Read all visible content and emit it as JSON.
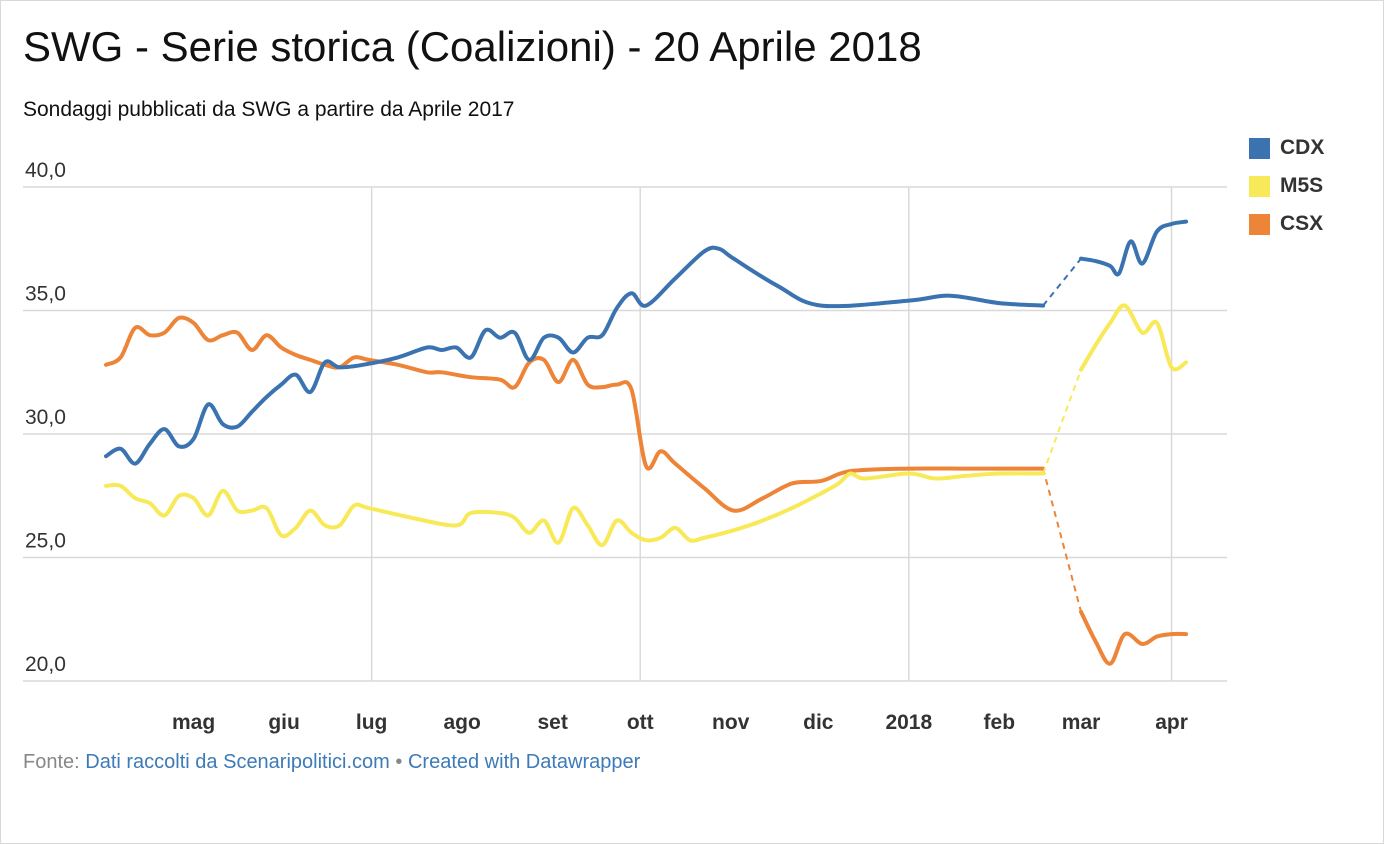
{
  "title": "SWG - Serie storica (Coalizioni) - 20 Aprile 2018",
  "subtitle": "Sondaggi pubblicati da SWG a partire da Aprile 2017",
  "footer": {
    "prefix": "Fonte:",
    "source_link": "Dati raccolti da Scenaripolitici.com",
    "separator": "•",
    "credit_link": "Created with Datawrapper"
  },
  "chart_data": {
    "type": "line",
    "title": "SWG - Serie storica (Coalizioni) - 20 Aprile 2018",
    "subtitle": "Sondaggi pubblicati da SWG a partire da Aprile 2017",
    "ylim": [
      20,
      40
    ],
    "yticks": [
      20,
      25,
      30,
      35,
      40
    ],
    "ytick_labels": [
      "20,0",
      "25,0",
      "30,0",
      "35,0",
      "40,0"
    ],
    "xlim": [
      "2017-04-01",
      "2018-04-20"
    ],
    "xticks": [
      {
        "date": "2017-05-01",
        "label": "mag",
        "bold": false
      },
      {
        "date": "2017-06-01",
        "label": "giu",
        "bold": false
      },
      {
        "date": "2017-07-01",
        "label": "lug",
        "bold": false
      },
      {
        "date": "2017-08-01",
        "label": "ago",
        "bold": false
      },
      {
        "date": "2017-09-01",
        "label": "set",
        "bold": false
      },
      {
        "date": "2017-10-01",
        "label": "ott",
        "bold": false
      },
      {
        "date": "2017-11-01",
        "label": "nov",
        "bold": false
      },
      {
        "date": "2017-12-01",
        "label": "dic",
        "bold": false
      },
      {
        "date": "2018-01-01",
        "label": "2018",
        "bold": true
      },
      {
        "date": "2018-02-01",
        "label": "feb",
        "bold": false
      },
      {
        "date": "2018-03-01",
        "label": "mar",
        "bold": false
      },
      {
        "date": "2018-04-01",
        "label": "apr",
        "bold": false
      }
    ],
    "vertical_gridlines_at": [
      "2017-07-01",
      "2017-10-01",
      "2018-01-01",
      "2018-04-01"
    ],
    "grid": true,
    "legend_position": "top-right",
    "gap": {
      "start": "2018-02-16",
      "end": "2018-03-01",
      "style": "dashed"
    },
    "series": [
      {
        "name": "CDX",
        "color": "#3a73b0",
        "points": [
          [
            "2017-04-01",
            29.1
          ],
          [
            "2017-04-06",
            29.4
          ],
          [
            "2017-04-11",
            28.8
          ],
          [
            "2017-04-16",
            29.6
          ],
          [
            "2017-04-21",
            30.2
          ],
          [
            "2017-04-26",
            29.5
          ],
          [
            "2017-05-01",
            29.8
          ],
          [
            "2017-05-06",
            31.2
          ],
          [
            "2017-05-11",
            30.4
          ],
          [
            "2017-05-16",
            30.3
          ],
          [
            "2017-05-21",
            30.9
          ],
          [
            "2017-05-26",
            31.5
          ],
          [
            "2017-05-31",
            32.0
          ],
          [
            "2017-06-05",
            32.4
          ],
          [
            "2017-06-10",
            31.7
          ],
          [
            "2017-06-15",
            32.9
          ],
          [
            "2017-06-20",
            32.7
          ],
          [
            "2017-06-28",
            32.8
          ],
          [
            "2017-07-10",
            33.1
          ],
          [
            "2017-07-20",
            33.5
          ],
          [
            "2017-07-25",
            33.4
          ],
          [
            "2017-07-30",
            33.5
          ],
          [
            "2017-08-04",
            33.1
          ],
          [
            "2017-08-09",
            34.2
          ],
          [
            "2017-08-14",
            33.9
          ],
          [
            "2017-08-19",
            34.1
          ],
          [
            "2017-08-24",
            33.0
          ],
          [
            "2017-08-29",
            33.9
          ],
          [
            "2017-09-03",
            33.9
          ],
          [
            "2017-09-08",
            33.3
          ],
          [
            "2017-09-13",
            33.9
          ],
          [
            "2017-09-18",
            34.0
          ],
          [
            "2017-09-23",
            35.1
          ],
          [
            "2017-09-28",
            35.7
          ],
          [
            "2017-10-03",
            35.2
          ],
          [
            "2017-10-13",
            36.3
          ],
          [
            "2017-10-23",
            37.4
          ],
          [
            "2017-10-28",
            37.5
          ],
          [
            "2017-11-02",
            37.1
          ],
          [
            "2017-11-17",
            36.0
          ],
          [
            "2017-12-02",
            35.2
          ],
          [
            "2018-01-01",
            35.4
          ],
          [
            "2018-01-15",
            35.6
          ],
          [
            "2018-02-01",
            35.3
          ],
          [
            "2018-02-16",
            35.2
          ],
          [
            "2018-03-01",
            37.1
          ],
          [
            "2018-03-06",
            37.0
          ],
          [
            "2018-03-11",
            36.8
          ],
          [
            "2018-03-14",
            36.5
          ],
          [
            "2018-03-18",
            37.8
          ],
          [
            "2018-03-22",
            36.9
          ],
          [
            "2018-03-27",
            38.2
          ],
          [
            "2018-04-01",
            38.5
          ],
          [
            "2018-04-06",
            38.6
          ]
        ]
      },
      {
        "name": "M5S",
        "color": "#f7e957",
        "points": [
          [
            "2017-04-01",
            27.9
          ],
          [
            "2017-04-06",
            27.9
          ],
          [
            "2017-04-11",
            27.4
          ],
          [
            "2017-04-16",
            27.2
          ],
          [
            "2017-04-21",
            26.7
          ],
          [
            "2017-04-26",
            27.5
          ],
          [
            "2017-05-01",
            27.4
          ],
          [
            "2017-05-06",
            26.7
          ],
          [
            "2017-05-11",
            27.7
          ],
          [
            "2017-05-16",
            26.9
          ],
          [
            "2017-05-21",
            26.9
          ],
          [
            "2017-05-26",
            27.0
          ],
          [
            "2017-05-31",
            25.9
          ],
          [
            "2017-06-05",
            26.2
          ],
          [
            "2017-06-10",
            26.9
          ],
          [
            "2017-06-15",
            26.3
          ],
          [
            "2017-06-20",
            26.3
          ],
          [
            "2017-06-25",
            27.1
          ],
          [
            "2017-06-30",
            27.0
          ],
          [
            "2017-07-15",
            26.6
          ],
          [
            "2017-07-30",
            26.3
          ],
          [
            "2017-08-04",
            26.8
          ],
          [
            "2017-08-14",
            26.8
          ],
          [
            "2017-08-19",
            26.6
          ],
          [
            "2017-08-24",
            26.0
          ],
          [
            "2017-08-29",
            26.5
          ],
          [
            "2017-09-03",
            25.6
          ],
          [
            "2017-09-08",
            27.0
          ],
          [
            "2017-09-13",
            26.3
          ],
          [
            "2017-09-18",
            25.5
          ],
          [
            "2017-09-23",
            26.5
          ],
          [
            "2017-09-28",
            26.0
          ],
          [
            "2017-10-03",
            25.7
          ],
          [
            "2017-10-08",
            25.8
          ],
          [
            "2017-10-13",
            26.2
          ],
          [
            "2017-10-18",
            25.7
          ],
          [
            "2017-10-23",
            25.8
          ],
          [
            "2017-11-02",
            26.1
          ],
          [
            "2017-11-12",
            26.5
          ],
          [
            "2017-11-22",
            27.0
          ],
          [
            "2017-12-02",
            27.6
          ],
          [
            "2017-12-08",
            28.0
          ],
          [
            "2017-12-12",
            28.4
          ],
          [
            "2017-12-17",
            28.2
          ],
          [
            "2018-01-01",
            28.4
          ],
          [
            "2018-01-10",
            28.2
          ],
          [
            "2018-01-20",
            28.3
          ],
          [
            "2018-02-01",
            28.4
          ],
          [
            "2018-02-16",
            28.4
          ],
          [
            "2018-03-01",
            32.6
          ],
          [
            "2018-03-06",
            33.6
          ],
          [
            "2018-03-11",
            34.5
          ],
          [
            "2018-03-16",
            35.2
          ],
          [
            "2018-03-22",
            34.1
          ],
          [
            "2018-03-27",
            34.5
          ],
          [
            "2018-04-01",
            32.7
          ],
          [
            "2018-04-06",
            32.9
          ]
        ]
      },
      {
        "name": "CSX",
        "color": "#ed8437",
        "points": [
          [
            "2017-04-01",
            32.8
          ],
          [
            "2017-04-06",
            33.1
          ],
          [
            "2017-04-11",
            34.3
          ],
          [
            "2017-04-16",
            34.0
          ],
          [
            "2017-04-21",
            34.1
          ],
          [
            "2017-04-26",
            34.7
          ],
          [
            "2017-05-01",
            34.5
          ],
          [
            "2017-05-06",
            33.8
          ],
          [
            "2017-05-11",
            34.0
          ],
          [
            "2017-05-16",
            34.1
          ],
          [
            "2017-05-21",
            33.4
          ],
          [
            "2017-05-26",
            34.0
          ],
          [
            "2017-05-31",
            33.5
          ],
          [
            "2017-06-05",
            33.2
          ],
          [
            "2017-06-10",
            33.0
          ],
          [
            "2017-06-15",
            32.8
          ],
          [
            "2017-06-20",
            32.7
          ],
          [
            "2017-06-25",
            33.1
          ],
          [
            "2017-06-30",
            33.0
          ],
          [
            "2017-07-10",
            32.8
          ],
          [
            "2017-07-20",
            32.5
          ],
          [
            "2017-07-25",
            32.5
          ],
          [
            "2017-08-04",
            32.3
          ],
          [
            "2017-08-14",
            32.2
          ],
          [
            "2017-08-19",
            31.9
          ],
          [
            "2017-08-24",
            32.9
          ],
          [
            "2017-08-29",
            33.0
          ],
          [
            "2017-09-03",
            32.1
          ],
          [
            "2017-09-08",
            33.0
          ],
          [
            "2017-09-13",
            32.0
          ],
          [
            "2017-09-18",
            31.9
          ],
          [
            "2017-09-23",
            32.0
          ],
          [
            "2017-09-28",
            31.8
          ],
          [
            "2017-10-03",
            28.7
          ],
          [
            "2017-10-08",
            29.3
          ],
          [
            "2017-10-13",
            28.8
          ],
          [
            "2017-10-23",
            27.8
          ],
          [
            "2017-11-02",
            26.9
          ],
          [
            "2017-11-12",
            27.4
          ],
          [
            "2017-11-22",
            28.0
          ],
          [
            "2017-12-02",
            28.1
          ],
          [
            "2017-12-12",
            28.5
          ],
          [
            "2018-01-01",
            28.6
          ],
          [
            "2018-01-20",
            28.6
          ],
          [
            "2018-02-01",
            28.6
          ],
          [
            "2018-02-16",
            28.6
          ],
          [
            "2018-03-01",
            22.8
          ],
          [
            "2018-03-06",
            21.6
          ],
          [
            "2018-03-11",
            20.7
          ],
          [
            "2018-03-16",
            21.9
          ],
          [
            "2018-03-22",
            21.5
          ],
          [
            "2018-03-27",
            21.8
          ],
          [
            "2018-04-01",
            21.9
          ],
          [
            "2018-04-06",
            21.9
          ]
        ]
      }
    ]
  }
}
